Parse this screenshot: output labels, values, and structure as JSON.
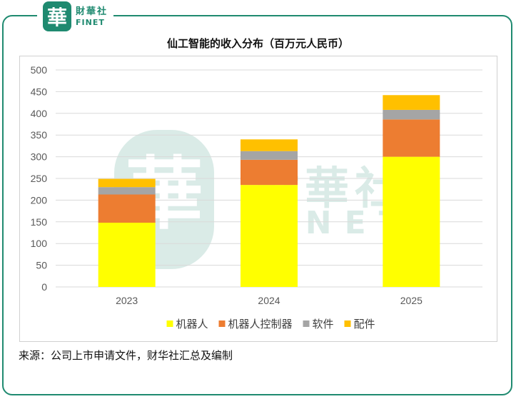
{
  "logo": {
    "cn": "財華社",
    "en": "FINET",
    "mark": "華"
  },
  "watermark": {
    "cn": "財華社",
    "en": "FINET"
  },
  "source": "来源：公司上市申请文件，财华社汇总及编制",
  "colors": {
    "frame": "#1f8a70",
    "grid": "#d9d9d9"
  },
  "chart_data": {
    "type": "bar",
    "stacked": true,
    "title": "仙工智能的收入分布（百万元人民币）",
    "categories": [
      "2023",
      "2024",
      "2025"
    ],
    "ylim": [
      0,
      500
    ],
    "yticks": [
      0,
      50,
      100,
      150,
      200,
      250,
      300,
      350,
      400,
      450,
      500
    ],
    "grid": true,
    "legend": "bottom",
    "series": [
      {
        "name": "机器人",
        "color": "#ffff00",
        "values": [
          148,
          235,
          300
        ]
      },
      {
        "name": "机器人控制器",
        "color": "#ed7d31",
        "values": [
          65,
          58,
          86
        ]
      },
      {
        "name": "软件",
        "color": "#a5a5a5",
        "values": [
          17,
          20,
          22
        ]
      },
      {
        "name": "配件",
        "color": "#ffc000",
        "values": [
          19,
          27,
          34
        ]
      }
    ]
  }
}
